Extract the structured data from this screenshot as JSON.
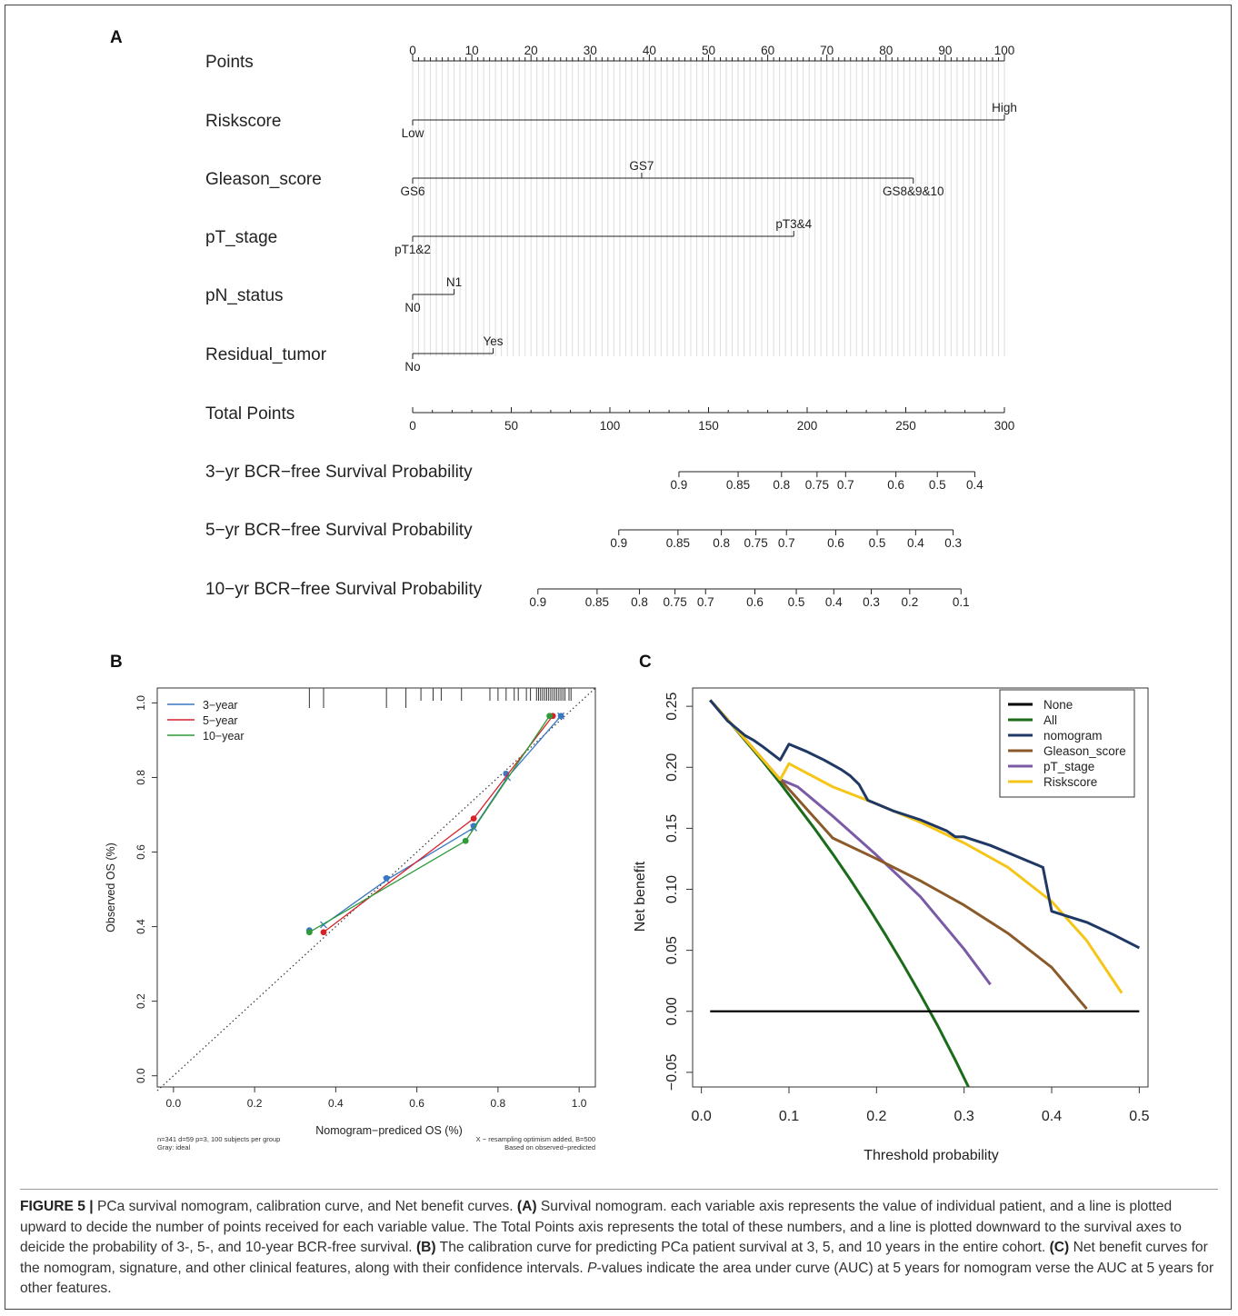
{
  "panels": {
    "a": "A",
    "b": "B",
    "c": "C"
  },
  "nomogram": {
    "points_ticks": [
      0,
      10,
      20,
      30,
      40,
      50,
      60,
      70,
      80,
      90,
      100
    ],
    "rows": [
      {
        "label": "Points"
      },
      {
        "label": "Riskscore",
        "ticks": [
          {
            "text": "Low",
            "pts": 0,
            "pos": "below"
          },
          {
            "text": "High",
            "pts": 100,
            "pos": "above"
          }
        ],
        "max": 100
      },
      {
        "label": "Gleason_score",
        "ticks": [
          {
            "text": "GS6",
            "pts": 0,
            "pos": "below"
          },
          {
            "text": "GS7",
            "pts": 38.7,
            "pos": "above"
          },
          {
            "text": "GS8&9&10",
            "pts": 84.6,
            "pos": "below"
          }
        ],
        "max": 84.6
      },
      {
        "label": "pT_stage",
        "ticks": [
          {
            "text": "pT1&2",
            "pts": 0,
            "pos": "below"
          },
          {
            "text": "pT3&4",
            "pts": 64.4,
            "pos": "above"
          }
        ],
        "max": 64.4
      },
      {
        "label": "pN_status",
        "ticks": [
          {
            "text": "N0",
            "pts": 0,
            "pos": "below"
          },
          {
            "text": "N1",
            "pts": 7,
            "pos": "above"
          }
        ],
        "max": 7
      },
      {
        "label": "Residual_tumor",
        "ticks": [
          {
            "text": "No",
            "pts": 0,
            "pos": "below"
          },
          {
            "text": "Yes",
            "pts": 13.6,
            "pos": "above"
          }
        ],
        "max": 13.6
      }
    ],
    "total_points": {
      "label": "Total Points",
      "ticks": [
        0,
        50,
        100,
        150,
        200,
        250,
        300
      ],
      "tick_labels": [
        "0",
        "50",
        "100",
        "150",
        "200",
        "250",
        "300"
      ]
    },
    "survival": [
      {
        "label": "3−yr BCR−free Survival Probability",
        "ticks": [
          {
            "p": "0.9",
            "tp": 135
          },
          {
            "p": "0.85",
            "tp": 165
          },
          {
            "p": "0.8",
            "tp": 187
          },
          {
            "p": "0.75",
            "tp": 205
          },
          {
            "p": "0.7",
            "tp": 219.5
          },
          {
            "p": "0.6",
            "tp": 245
          },
          {
            "p": "0.5",
            "tp": 266
          },
          {
            "p": "0.4",
            "tp": 285
          }
        ]
      },
      {
        "label": "5−yr BCR−free Survival Probability",
        "ticks": [
          {
            "p": "0.9",
            "tp": 104.5
          },
          {
            "p": "0.85",
            "tp": 134.5
          },
          {
            "p": "0.8",
            "tp": 156.5
          },
          {
            "p": "0.75",
            "tp": 174
          },
          {
            "p": "0.7",
            "tp": 189.5
          },
          {
            "p": "0.6",
            "tp": 214.5
          },
          {
            "p": "0.5",
            "tp": 235.5
          },
          {
            "p": "0.4",
            "tp": 255
          },
          {
            "p": "0.3",
            "tp": 274
          }
        ]
      },
      {
        "label": "10−yr BCR−free Survival Probability",
        "ticks": [
          {
            "p": "0.9",
            "tp": 63.5
          },
          {
            "p": "0.85",
            "tp": 93.5
          },
          {
            "p": "0.8",
            "tp": 115
          },
          {
            "p": "0.75",
            "tp": 133
          },
          {
            "p": "0.7",
            "tp": 148.5
          },
          {
            "p": "0.6",
            "tp": 173.5
          },
          {
            "p": "0.5",
            "tp": 194.5
          },
          {
            "p": "0.4",
            "tp": 213.5
          },
          {
            "p": "0.3",
            "tp": 232.5
          },
          {
            "p": "0.2",
            "tp": 252
          },
          {
            "p": "0.1",
            "tp": 278
          }
        ]
      }
    ]
  },
  "chart_data": [
    {
      "type": "line",
      "panel": "B",
      "xlabel": "Nomogram−prediced OS (%)",
      "ylabel": "Observed OS (%)",
      "xlim": [
        -0.04,
        1.04
      ],
      "ylim": [
        -0.03,
        1.04
      ],
      "x_ticks": [
        "0.0",
        "0.2",
        "0.4",
        "0.6",
        "0.8",
        "1.0"
      ],
      "y_ticks": [
        "0.0",
        "0.2",
        "0.4",
        "0.6",
        "0.8",
        "1.0"
      ],
      "colors": {
        "3-year": "#3a78c3",
        "5-year": "#d6232a",
        "10-year": "#2f9a3a",
        "ideal": "#333333"
      },
      "series": [
        {
          "name": "3−year",
          "x": [
            0.37,
            0.525,
            0.74,
            0.823,
            0.955
          ],
          "y": [
            0.405,
            0.525,
            0.665,
            0.8,
            0.965
          ],
          "cal_x": [
            0.335,
            0.525,
            0.74,
            0.82,
            0.955
          ],
          "cal_y": [
            0.39,
            0.53,
            0.67,
            0.81,
            0.965
          ]
        },
        {
          "name": "5−year",
          "x": [
            0.37,
            0.74,
            0.935
          ],
          "y": [
            0.385,
            0.69,
            0.965
          ],
          "cal_x": [
            0.37,
            0.74,
            0.935
          ],
          "cal_y": [
            0.385,
            0.69,
            0.965
          ]
        },
        {
          "name": "10−year",
          "x": [
            0.335,
            0.72,
            0.927
          ],
          "y": [
            0.385,
            0.63,
            0.965
          ],
          "cal_x": [
            0.335,
            0.72,
            0.927
          ],
          "cal_y": [
            0.385,
            0.63,
            0.965
          ]
        }
      ],
      "rug": [
        0.335,
        0.37,
        0.525,
        0.573,
        0.61,
        0.64,
        0.66,
        0.71,
        0.78,
        0.8,
        0.82,
        0.84,
        0.85,
        0.87,
        0.88,
        0.895,
        0.9,
        0.905,
        0.91,
        0.915,
        0.92,
        0.925,
        0.93,
        0.935,
        0.94,
        0.945,
        0.95,
        0.955,
        0.96,
        0.965,
        0.975,
        0.98
      ],
      "note_left": [
        "n=341 d=59 p=3, 100 subjects per group",
        "Gray: ideal"
      ],
      "note_right": [
        "X − resampling optimism added, B=500",
        "Based on observed−predicted"
      ]
    },
    {
      "type": "line",
      "panel": "C",
      "xlabel": "Threshold probability",
      "ylabel": "Net benefit",
      "xlim": [
        -0.01,
        0.51
      ],
      "ylim": [
        -0.062,
        0.265
      ],
      "x_ticks": [
        "0.0",
        "0.1",
        "0.2",
        "0.3",
        "0.4",
        "0.5"
      ],
      "y_ticks": [
        "−0.05",
        "0.00",
        "0.05",
        "0.10",
        "0.15",
        "0.20",
        "0.25"
      ],
      "legend_position": "top-right",
      "series": [
        {
          "name": "None",
          "color": "#000000",
          "x": [
            0.01,
            0.5
          ],
          "y": [
            0,
            0
          ]
        },
        {
          "name": "All",
          "color": "#1a6b1a",
          "x": [
            0.01,
            0.03,
            0.05,
            0.07,
            0.09,
            0.11,
            0.13,
            0.15,
            0.17,
            0.19,
            0.21,
            0.23,
            0.25,
            0.27,
            0.29,
            0.305
          ],
          "y": [
            0.255,
            0.239,
            0.222,
            0.205,
            0.187,
            0.168,
            0.149,
            0.129,
            0.108,
            0.086,
            0.063,
            0.039,
            0.014,
            -0.012,
            -0.04,
            -0.062
          ]
        },
        {
          "name": "nomogram",
          "color": "#1f3864",
          "x": [
            0.01,
            0.03,
            0.05,
            0.06,
            0.07,
            0.09,
            0.1,
            0.12,
            0.14,
            0.16,
            0.17,
            0.18,
            0.19,
            0.22,
            0.25,
            0.28,
            0.29,
            0.3,
            0.33,
            0.36,
            0.39,
            0.4,
            0.44,
            0.47,
            0.5
          ],
          "y": [
            0.255,
            0.238,
            0.226,
            0.222,
            0.217,
            0.206,
            0.219,
            0.213,
            0.206,
            0.198,
            0.193,
            0.186,
            0.173,
            0.164,
            0.157,
            0.148,
            0.143,
            0.143,
            0.136,
            0.127,
            0.118,
            0.082,
            0.073,
            0.063,
            0.052
          ]
        },
        {
          "name": "Gleason_score",
          "color": "#8b5a2b",
          "x": [
            0.01,
            0.05,
            0.09,
            0.11,
            0.13,
            0.15,
            0.2,
            0.25,
            0.3,
            0.35,
            0.4,
            0.44
          ],
          "y": [
            0.255,
            0.223,
            0.19,
            0.174,
            0.158,
            0.142,
            0.125,
            0.107,
            0.087,
            0.064,
            0.036,
            0.002
          ]
        },
        {
          "name": "pT_stage",
          "color": "#7b5aa6",
          "x": [
            0.01,
            0.05,
            0.09,
            0.11,
            0.15,
            0.2,
            0.25,
            0.3,
            0.33
          ],
          "y": [
            0.255,
            0.223,
            0.19,
            0.184,
            0.16,
            0.128,
            0.094,
            0.051,
            0.022
          ]
        },
        {
          "name": "Riskscore",
          "color": "#f5c518",
          "x": [
            0.01,
            0.05,
            0.09,
            0.1,
            0.15,
            0.2,
            0.25,
            0.3,
            0.35,
            0.4,
            0.44,
            0.48
          ],
          "y": [
            0.255,
            0.223,
            0.19,
            0.203,
            0.184,
            0.17,
            0.155,
            0.138,
            0.118,
            0.09,
            0.058,
            0.015
          ]
        }
      ]
    }
  ],
  "caption": {
    "fig": "FIGURE 5 |",
    "intro": " PCa survival nomogram, calibration curve, and Net benefit curves. ",
    "a_label": "(A)",
    "a_text": " Survival nomogram. each variable axis represents the value of individual patient, and a line is plotted upward to decide the number of points received for each variable value. The Total Points axis represents the total of these numbers, and a line is plotted downward to the survival axes to deicide the probability of 3-, 5-, and 10-year BCR-free survival. ",
    "b_label": "(B)",
    "b_text": " The calibration curve for predicting PCa patient survival at 3, 5, and 10 years in the entire cohort. ",
    "c_label": "(C)",
    "c_text": " Net benefit curves for the nomogram, signature, and other clinical features, along with their confidence intervals. ",
    "p_label": "P",
    "p_text": "-values indicate the area under curve (AUC) at 5 years for nomogram verse the AUC at 5 years for other features."
  }
}
